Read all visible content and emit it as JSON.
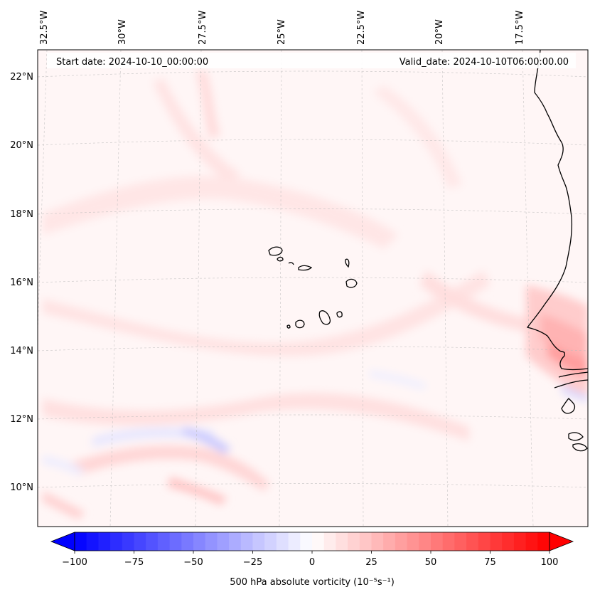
{
  "map": {
    "start_label": "Start date: 2024-10-10_00:00:00",
    "valid_label": "Valid_date: 2024-10-10T06:00:00.00",
    "lon_labels": [
      "32.5°W",
      "30°W",
      "27.5°W",
      "25°W",
      "22.5°W",
      "20°W",
      "17.5°W"
    ],
    "lat_labels": [
      "22°N",
      "20°N",
      "18°N",
      "16°N",
      "14°N",
      "12°N",
      "10°N"
    ],
    "colors": {
      "neg": "#0000ff",
      "zero": "#ffffff",
      "pos": "#ff0000",
      "coast": "#000000"
    }
  },
  "colorbar": {
    "min": -100,
    "max": 100,
    "ticks": [
      "−100",
      "−75",
      "−50",
      "−25",
      "0",
      "25",
      "50",
      "75",
      "100"
    ],
    "label": "500 hPa absolute vorticity (10⁻⁵s⁻¹)"
  }
}
